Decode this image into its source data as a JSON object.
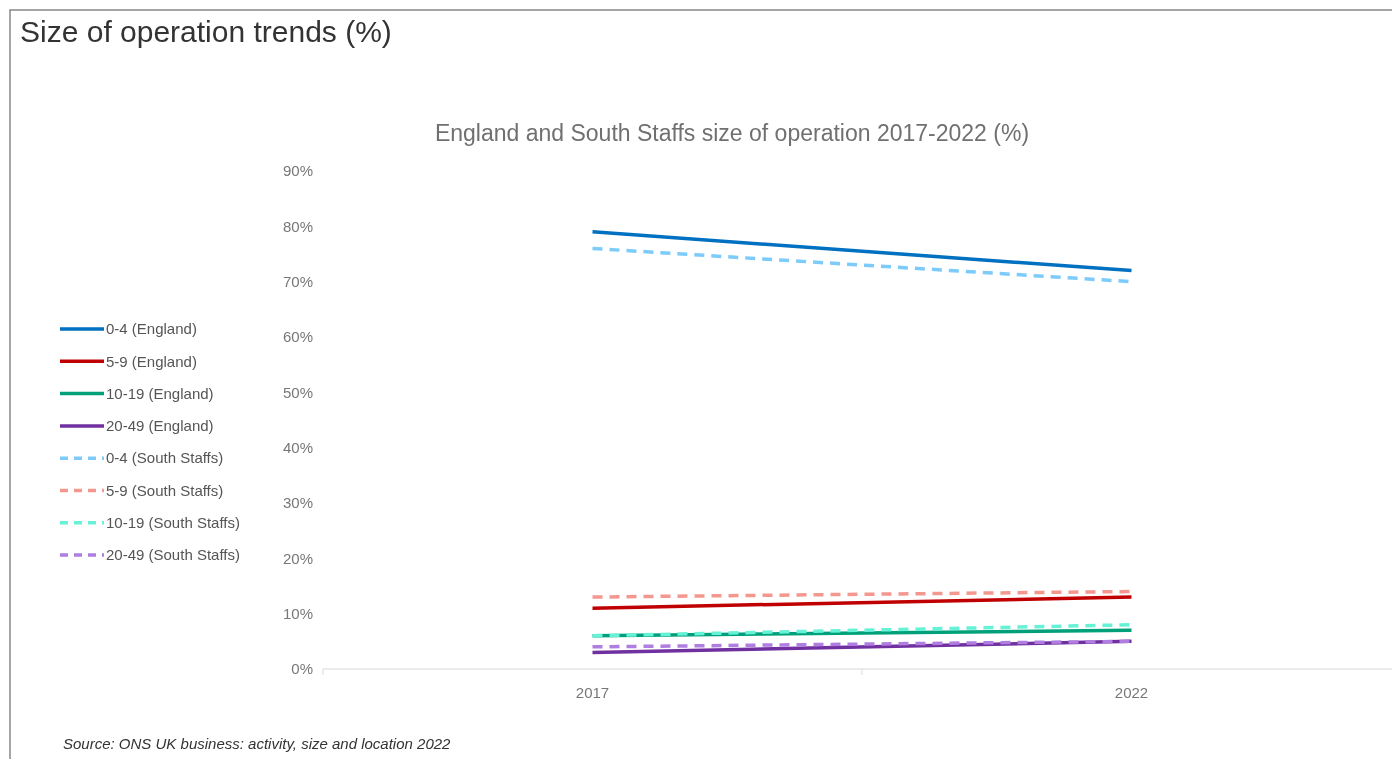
{
  "chart_data": {
    "type": "line",
    "title": "Size of operation trends (%)",
    "subtitle": "England and South Staffs size of operation 2017-2022 (%)",
    "annotations": [
      "Source: ONS UK business: activity, size and location 2022"
    ],
    "categories": [
      "2017",
      "2022"
    ],
    "ylim": [
      0,
      90
    ],
    "yticks": [
      {
        "value": 0,
        "label": "0%"
      },
      {
        "value": 10,
        "label": "10%"
      },
      {
        "value": 20,
        "label": "20%"
      },
      {
        "value": 30,
        "label": "30%"
      },
      {
        "value": 40,
        "label": "40%"
      },
      {
        "value": 50,
        "label": "50%"
      },
      {
        "value": 60,
        "label": "60%"
      },
      {
        "value": 70,
        "label": "70%"
      },
      {
        "value": 80,
        "label": "80%"
      },
      {
        "value": 90,
        "label": "90%"
      }
    ],
    "legend": "left",
    "series": [
      {
        "name": "0-4 (England)",
        "color": "#0070c0",
        "line_style": "solid",
        "values": [
          79,
          72
        ]
      },
      {
        "name": "5-9 (England)",
        "color": "#c00000",
        "line_style": "solid",
        "values": [
          11,
          13
        ]
      },
      {
        "name": "10-19 (England)",
        "color": "#00a07a",
        "line_style": "solid",
        "values": [
          6,
          7
        ]
      },
      {
        "name": "20-49 (England)",
        "color": "#7030a0",
        "line_style": "solid",
        "values": [
          3,
          5
        ]
      },
      {
        "name": "0-4 (South Staffs)",
        "color": "#7ccbfa",
        "line_style": "dashed",
        "values": [
          76,
          70
        ]
      },
      {
        "name": "5-9 (South Staffs)",
        "color": "#f4978e",
        "line_style": "dashed",
        "values": [
          13,
          14
        ]
      },
      {
        "name": "10-19 (South Staffs)",
        "color": "#66f2d6",
        "line_style": "dashed",
        "values": [
          6,
          8
        ]
      },
      {
        "name": "20-49 (South Staffs)",
        "color": "#b07ee0",
        "line_style": "dashed",
        "values": [
          4,
          5
        ]
      }
    ]
  }
}
